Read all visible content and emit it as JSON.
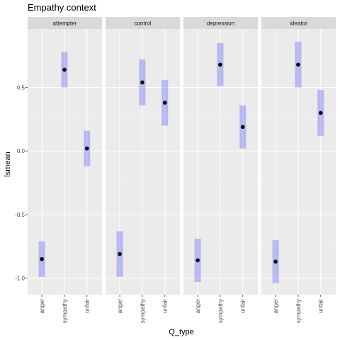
{
  "chart_data": {
    "type": "scatter",
    "title": "Empathy context",
    "xlabel": "Q_type",
    "ylabel": "lsmean",
    "categories": [
      "anger",
      "sympathy",
      "unfair"
    ],
    "ylim": [
      -1.13,
      0.96
    ],
    "yticks": [
      -1.0,
      -0.5,
      0.0,
      0.5
    ],
    "ytick_labels": [
      "-1.0",
      "-0.5",
      "0.0",
      "0.5"
    ],
    "grid": true,
    "panels": [
      {
        "name": "attempter",
        "points": [
          {
            "x": "anger",
            "y": -0.85,
            "low": -0.99,
            "high": -0.71
          },
          {
            "x": "sympathy",
            "y": 0.64,
            "low": 0.5,
            "high": 0.78
          },
          {
            "x": "unfair",
            "y": 0.02,
            "low": -0.12,
            "high": 0.16
          }
        ]
      },
      {
        "name": "control",
        "points": [
          {
            "x": "anger",
            "y": -0.81,
            "low": -0.99,
            "high": -0.63
          },
          {
            "x": "sympathy",
            "y": 0.54,
            "low": 0.36,
            "high": 0.72
          },
          {
            "x": "unfair",
            "y": 0.38,
            "low": 0.2,
            "high": 0.56
          }
        ]
      },
      {
        "name": "depression",
        "points": [
          {
            "x": "anger",
            "y": -0.86,
            "low": -1.03,
            "high": -0.69
          },
          {
            "x": "sympathy",
            "y": 0.68,
            "low": 0.51,
            "high": 0.85
          },
          {
            "x": "unfair",
            "y": 0.19,
            "low": 0.02,
            "high": 0.36
          }
        ]
      },
      {
        "name": "ideator",
        "points": [
          {
            "x": "anger",
            "y": -0.87,
            "low": -1.04,
            "high": -0.7
          },
          {
            "x": "sympathy",
            "y": 0.68,
            "low": 0.5,
            "high": 0.86
          },
          {
            "x": "unfair",
            "y": 0.3,
            "low": 0.12,
            "high": 0.48
          }
        ]
      }
    ],
    "colors": {
      "panel_background": "#ebebeb",
      "strip_background": "#d9d9d9",
      "grid_major": "#ffffff",
      "grid_minor": "#f5f5f5",
      "interval": "#0000ff",
      "point": "#000000"
    }
  }
}
